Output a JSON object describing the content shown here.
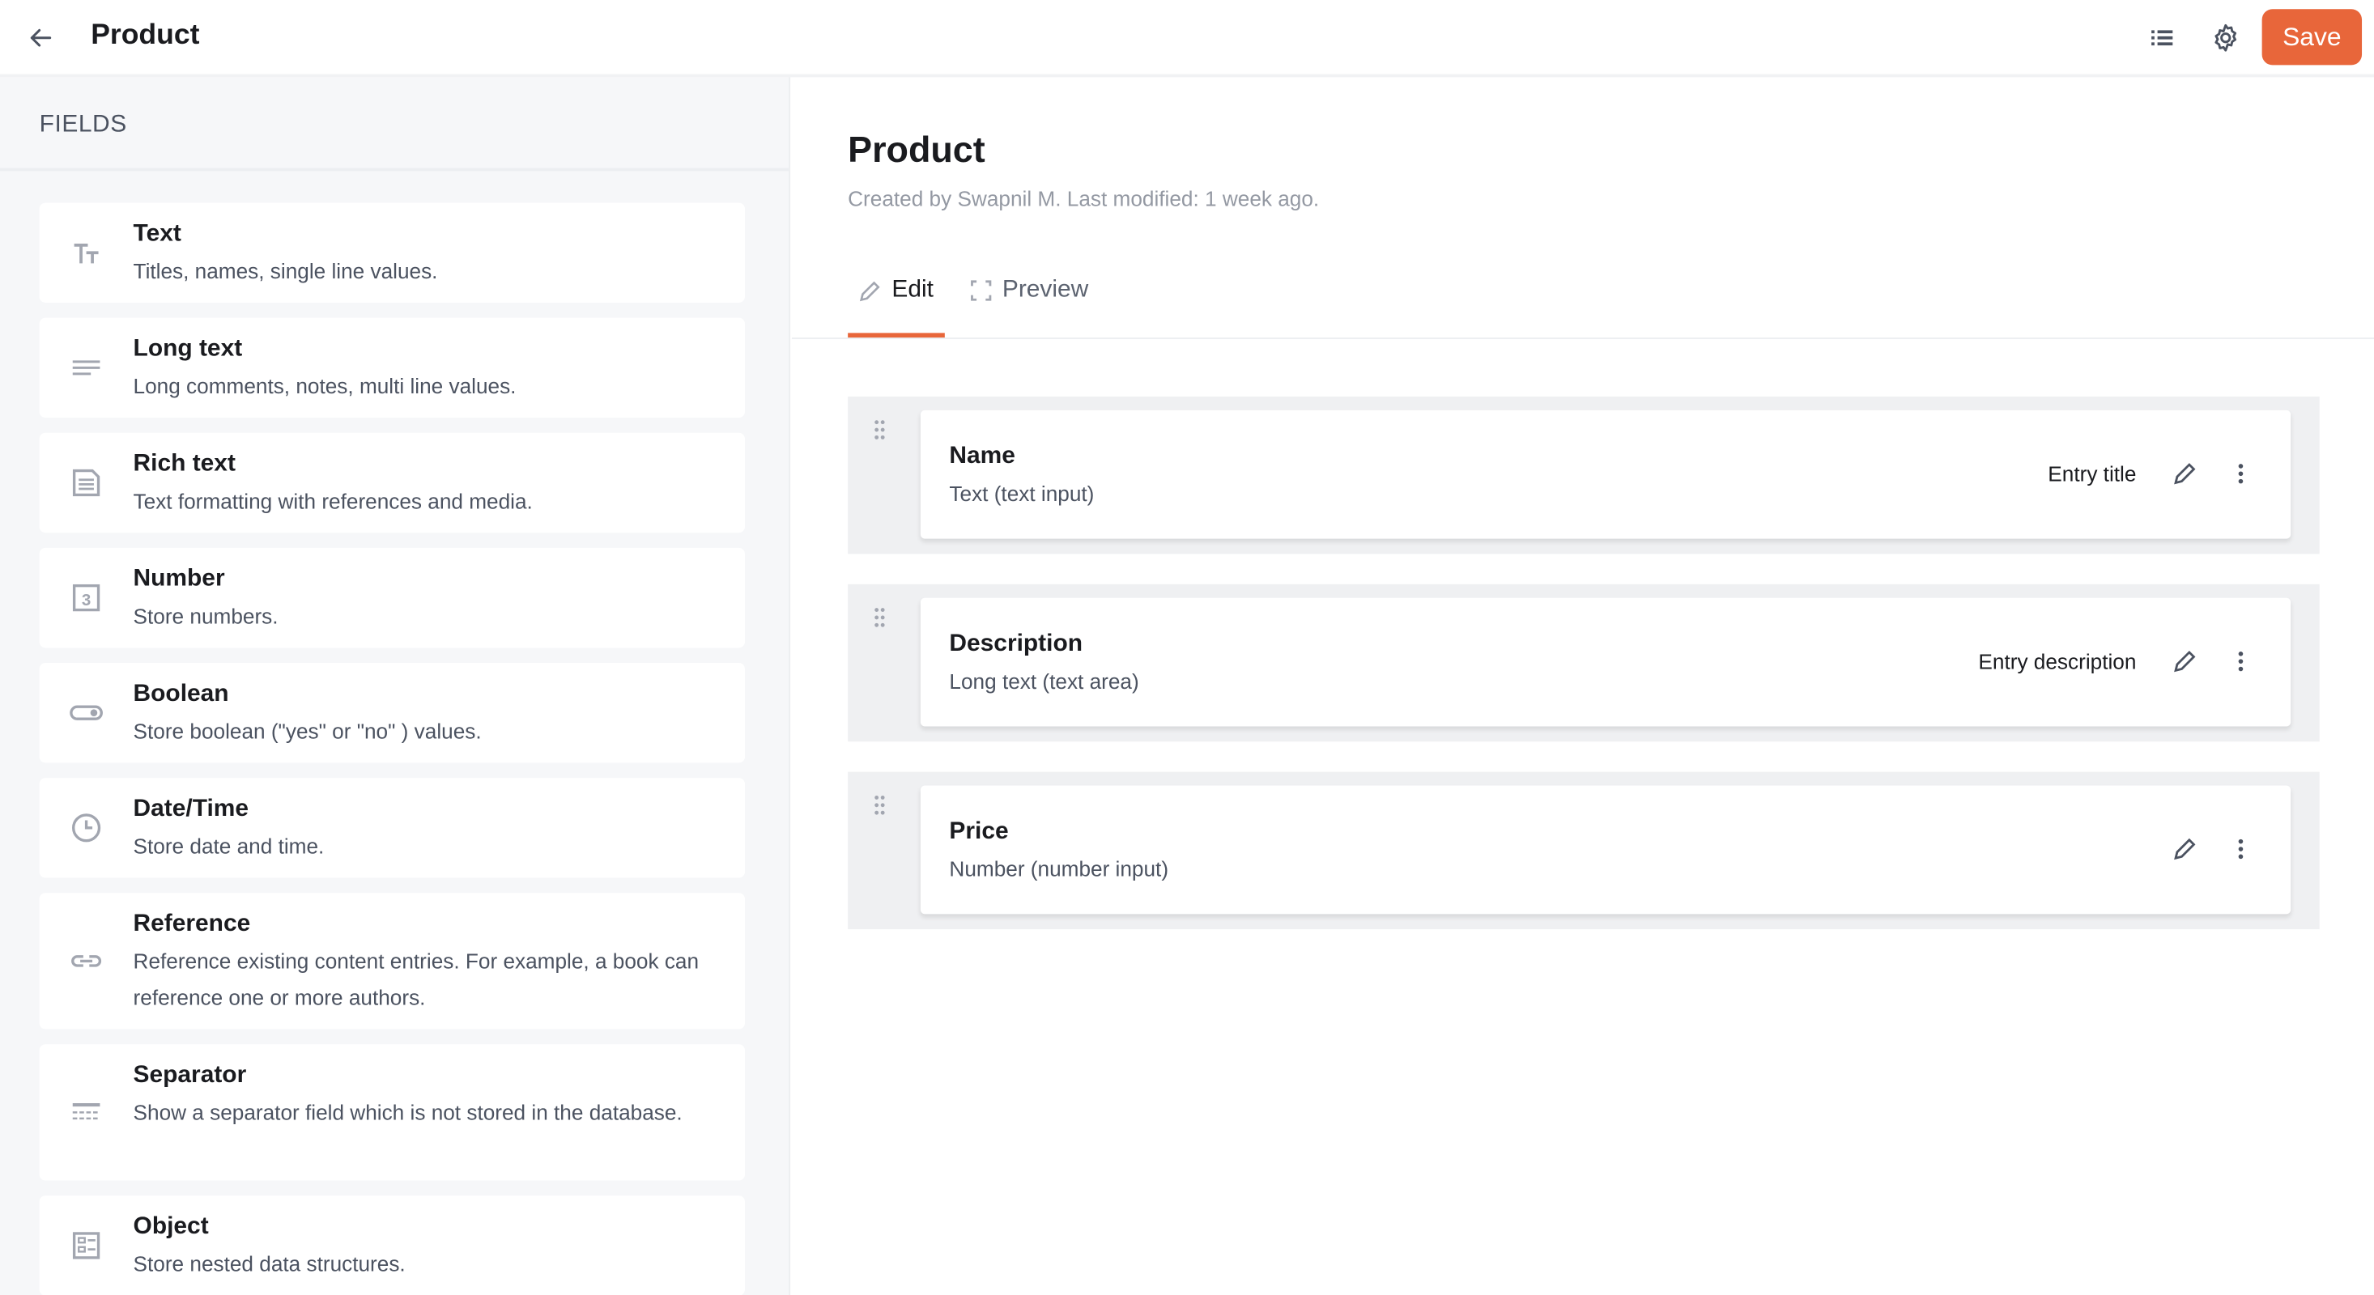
{
  "header": {
    "title": "Product",
    "save_label": "Save"
  },
  "colors": {
    "accent": "#e8663a",
    "icon": "#a2a6b0",
    "sidebar_bg": "#f6f7f9"
  },
  "sidebar": {
    "heading": "FIELDS",
    "items": [
      {
        "label": "Text",
        "description": "Titles, names, single line values.",
        "icon": "text-type-icon"
      },
      {
        "label": "Long text",
        "description": "Long comments, notes, multi line values.",
        "icon": "align-left-icon"
      },
      {
        "label": "Rich text",
        "description": "Text formatting with references and media.",
        "icon": "document-icon"
      },
      {
        "label": "Number",
        "description": "Store numbers.",
        "icon": "number-icon"
      },
      {
        "label": "Boolean",
        "description": "Store boolean (\"yes\" or \"no\" ) values.",
        "icon": "toggle-icon"
      },
      {
        "label": "Date/Time",
        "description": "Store date and time.",
        "icon": "clock-icon"
      },
      {
        "label": "Reference",
        "description": "Reference existing content entries. For example, a book can reference one or more authors.",
        "icon": "link-icon"
      },
      {
        "label": "Separator",
        "description": "Show a separator field which is not stored in the database.",
        "icon": "separator-icon"
      },
      {
        "label": "Object",
        "description": "Store nested data structures.",
        "icon": "object-icon"
      }
    ]
  },
  "main": {
    "title": "Product",
    "subtitle": "Created by Swapnil M. Last modified: 1 week ago.",
    "tabs": [
      {
        "label": "Edit",
        "active": true
      },
      {
        "label": "Preview",
        "active": false
      }
    ],
    "fields": [
      {
        "name": "Name",
        "type": "Text (text input)",
        "role": "Entry title"
      },
      {
        "name": "Description",
        "type": "Long text (text area)",
        "role": "Entry description"
      },
      {
        "name": "Price",
        "type": "Number (number input)",
        "role": ""
      }
    ]
  }
}
